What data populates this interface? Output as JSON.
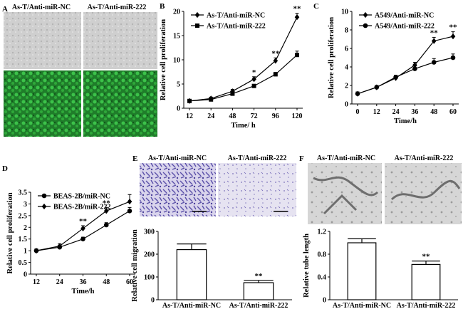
{
  "panel_letters": {
    "A": "A",
    "B": "B",
    "C": "C",
    "D": "D",
    "E": "E",
    "F": "F"
  },
  "panel_a": {
    "left_label": "As-T/Anti-miR-NC",
    "right_label": "As-T/Anti-miR-222"
  },
  "panel_e_images": {
    "left_label": "As-T/Anti-miR-NC",
    "right_label": "As-T/Anti-miR-222"
  },
  "panel_f_images": {
    "left_label": "As-T/Anti-miR-NC",
    "right_label": "As-T/Anti-miR-222"
  },
  "colors": {
    "phase_contrast": "#c8c8c8",
    "gfp_green": "#2fa83a",
    "crystal_violet": "#6a5fb2",
    "tube_gray": "#bdbdbd"
  },
  "chart_data": [
    {
      "id": "B",
      "type": "line",
      "x": [
        "12",
        "24",
        "48",
        "72",
        "96",
        "120"
      ],
      "xlabel": "Time/ h",
      "ylabel": "Relative cell proliferation",
      "ylim": [
        0,
        20
      ],
      "yticks": [
        "0",
        "5",
        "10",
        "15",
        "20"
      ],
      "legend": "top-left",
      "series": [
        {
          "name": "As-T/Anti-miR-NC",
          "marker": "diamond",
          "values": [
            1.5,
            2.0,
            3.5,
            6.0,
            9.8,
            18.8
          ],
          "errors": [
            0.3,
            0.3,
            0.4,
            0.5,
            0.6,
            0.8
          ]
        },
        {
          "name": "As-T/Anti-miR-222",
          "marker": "square",
          "values": [
            1.5,
            1.8,
            3.0,
            4.6,
            7.0,
            11.0
          ],
          "errors": [
            0.2,
            0.2,
            0.3,
            0.3,
            0.4,
            0.8
          ]
        }
      ],
      "annotations": [
        {
          "x": "72",
          "text": "*"
        },
        {
          "x": "96",
          "text": "**"
        },
        {
          "x": "120",
          "text": "**"
        }
      ]
    },
    {
      "id": "C",
      "type": "line",
      "x": [
        "0",
        "12",
        "24",
        "36",
        "48",
        "60"
      ],
      "xlabel": "Time/h",
      "ylabel": "Relative cell proliferation",
      "ylim": [
        0,
        10
      ],
      "yticks": [
        "0",
        "2",
        "4",
        "6",
        "8",
        "10"
      ],
      "legend": "top-left",
      "series": [
        {
          "name": "A549/Anti-miR-NC",
          "marker": "diamond",
          "values": [
            1.1,
            1.8,
            2.8,
            4.2,
            6.8,
            7.3
          ],
          "errors": [
            0.2,
            0.2,
            0.2,
            0.3,
            0.4,
            0.5
          ]
        },
        {
          "name": "A549/Anti-miR-222",
          "marker": "circle",
          "values": [
            1.1,
            1.8,
            2.9,
            3.8,
            4.5,
            5.0
          ],
          "errors": [
            0.2,
            0.2,
            0.2,
            0.3,
            0.4,
            0.4
          ]
        }
      ],
      "annotations": [
        {
          "x": "48",
          "text": "**"
        },
        {
          "x": "60",
          "text": "**"
        }
      ]
    },
    {
      "id": "D",
      "type": "line",
      "x": [
        "12",
        "24",
        "36",
        "48",
        "60"
      ],
      "xlabel": "Time/h",
      "ylabel": "Relative cell proliferation",
      "ylim": [
        0,
        3.5
      ],
      "yticks": [
        "0",
        "0.5",
        "1",
        "1.5",
        "2",
        "2.5",
        "3",
        "3.5"
      ],
      "legend": "top-left",
      "series": [
        {
          "name": "BEAS-2B/miR-NC",
          "marker": "circle",
          "values": [
            1.0,
            1.15,
            1.5,
            2.1,
            2.7
          ],
          "errors": [
            0.08,
            0.08,
            0.08,
            0.1,
            0.15
          ]
        },
        {
          "name": "BEAS-2B/miR-222",
          "marker": "diamond",
          "values": [
            1.0,
            1.2,
            1.95,
            2.7,
            3.1
          ],
          "errors": [
            0.08,
            0.1,
            0.12,
            0.15,
            0.3
          ]
        }
      ],
      "annotations": [
        {
          "x": "36",
          "text": "**"
        },
        {
          "x": "48",
          "text": "**"
        }
      ]
    },
    {
      "id": "E",
      "type": "bar",
      "categories": [
        "As-T/Anti-miR-NC",
        "As-T/Anti-miR-222"
      ],
      "values": [
        220,
        75
      ],
      "errors": [
        25,
        10
      ],
      "ylabel": "Relative cell migration",
      "ylim": [
        0,
        300
      ],
      "yticks": [
        "0",
        "100",
        "200",
        "300"
      ],
      "annotations": [
        {
          "category": "As-T/Anti-miR-222",
          "text": "**"
        }
      ]
    },
    {
      "id": "F",
      "type": "bar",
      "categories": [
        "As-T/Anti-miR-NC",
        "As-T/Anti-miR-222"
      ],
      "values": [
        1.0,
        0.62
      ],
      "errors": [
        0.07,
        0.06
      ],
      "ylabel": "Relative tube length",
      "ylim": [
        0,
        1.2
      ],
      "yticks": [
        "0",
        "0.4",
        "0.8",
        "1.2"
      ],
      "annotations": [
        {
          "category": "As-T/Anti-miR-222",
          "text": "**"
        }
      ]
    }
  ]
}
